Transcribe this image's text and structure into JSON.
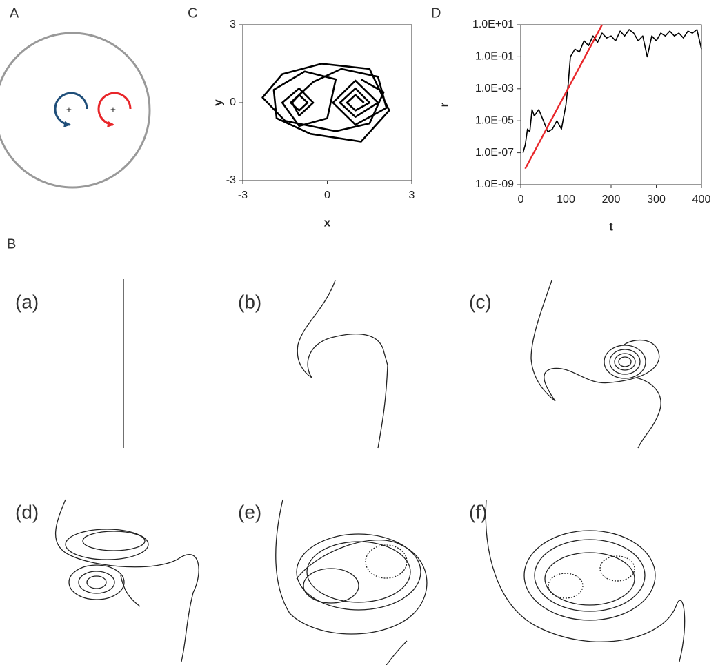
{
  "panel_labels": {
    "A": "A",
    "B": "B",
    "C": "C",
    "D": "D"
  },
  "panel_a": {
    "plus_left": "+",
    "plus_right": "+"
  },
  "panel_b": {
    "labels": [
      "(a)",
      "(b)",
      "(c)",
      "(d)",
      "(e)",
      "(f)"
    ]
  },
  "chart_data": [
    {
      "type": "line",
      "x_label": "x",
      "y_label": "y",
      "xlim": [
        -3,
        3
      ],
      "ylim": [
        -3,
        3
      ],
      "xticks": [
        -3,
        0,
        3
      ],
      "yticks": [
        -3,
        0,
        3
      ],
      "series": [
        {
          "color": "#000000",
          "x": [
            1.3,
            1,
            0.7,
            1,
            1.5,
            1,
            0.45,
            1,
            1.8,
            1,
            0.2,
            1,
            2.1,
            1.8,
            0.5,
            -0.5,
            -1.3,
            -1,
            -0.7,
            -1,
            -1.25,
            -1,
            -0.5,
            -1,
            -1.6,
            -1,
            0,
            0.3,
            -0.8,
            -1.9,
            -1.8,
            -0.6,
            1.2,
            2.2,
            1.5,
            -0.2,
            -1.6,
            -2.3,
            -1.5,
            0.3,
            1.5,
            2.0,
            1.2
          ],
          "values": [
            0,
            0.3,
            0,
            -0.3,
            0,
            0.55,
            0,
            -0.55,
            0,
            0.85,
            0,
            -0.85,
            -0.2,
            1.0,
            1.3,
            0.8,
            0,
            -0.3,
            0,
            0.3,
            0,
            -0.5,
            0,
            0.55,
            0,
            -0.9,
            -0.6,
            0.9,
            1.2,
            0.5,
            -0.6,
            -1.2,
            -1.5,
            -0.3,
            1.3,
            1.5,
            1.1,
            0.2,
            -0.7,
            -1.1,
            -0.8,
            0.4,
            0.9
          ]
        }
      ]
    },
    {
      "type": "line",
      "x_label": "t",
      "y_label": "r",
      "y_scale": "log",
      "xlim": [
        0,
        400
      ],
      "ylim": [
        1e-09,
        10
      ],
      "xticks": [
        0,
        100,
        200,
        300,
        400
      ],
      "yticks": [
        {
          "value": 1e-09,
          "label": "1.0E-09"
        },
        {
          "value": 1e-07,
          "label": "1.0E-07"
        },
        {
          "value": 1e-05,
          "label": "1.0E-05"
        },
        {
          "value": 0.001,
          "label": "1.0E-03"
        },
        {
          "value": 0.1,
          "label": "1.0E-01"
        },
        {
          "value": 10,
          "label": "1.0E+01"
        }
      ],
      "series": [
        {
          "color": "#000000",
          "x": [
            5,
            10,
            15,
            20,
            25,
            30,
            40,
            50,
            60,
            70,
            80,
            90,
            100,
            105,
            110,
            120,
            130,
            140,
            150,
            160,
            170,
            180,
            190,
            200,
            210,
            220,
            230,
            240,
            250,
            260,
            270,
            280,
            290,
            300,
            310,
            320,
            330,
            340,
            350,
            360,
            370,
            380,
            390,
            400
          ],
          "values": [
            1e-07,
            3e-07,
            3e-06,
            2e-06,
            5e-05,
            2e-05,
            5e-05,
            1e-05,
            2e-06,
            3e-06,
            1e-05,
            3e-06,
            0.0001,
            0.002,
            0.1,
            0.3,
            0.2,
            1,
            0.5,
            2,
            0.8,
            3,
            1.5,
            2,
            1,
            4,
            2,
            5,
            3,
            1,
            2,
            0.1,
            2,
            1,
            3,
            2,
            4,
            2,
            3,
            1.5,
            4,
            3,
            5,
            0.3
          ]
        },
        {
          "color": "#e8262a",
          "x": [
            10,
            180
          ],
          "values": [
            1e-08,
            10
          ]
        }
      ]
    }
  ]
}
